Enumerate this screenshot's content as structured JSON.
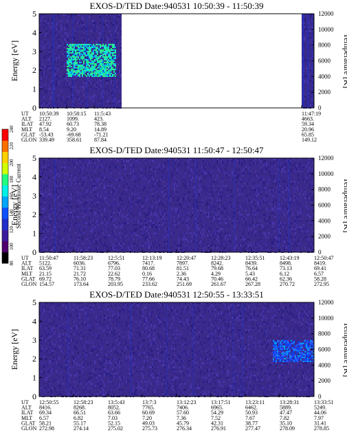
{
  "chart_data": [
    {
      "type": "heatmap",
      "title": "EXOS-D/TED  Date:940531  10:50:39 - 11:50:39",
      "ylabel": "Energy [eV]",
      "ylabel_right": "Temperature [K]",
      "ylim": [
        0,
        5
      ],
      "y_ticks": [
        "0",
        "1",
        "2",
        "3",
        "4",
        "5"
      ],
      "y2lim": [
        0,
        12000
      ],
      "y2_ticks": [
        "0",
        "2000",
        "4000",
        "6000",
        "8000",
        "10000",
        "12000"
      ],
      "row_labels": [
        "UT",
        "ALT",
        "ILAT",
        "MLT",
        "GLAT",
        "GLON"
      ],
      "x_ticks": [
        {
          "col": [
            "10:50:39",
            "2127.",
            "47.92",
            "8.54",
            "-53.43",
            "339.49"
          ]
        },
        {
          "col": [
            "10:58:15",
            "1099.",
            "60.73",
            "9.20",
            "-69.68",
            "358.61"
          ]
        },
        {
          "col": [
            "11:5:43",
            "423.",
            "78.38",
            "14.89",
            "-71.21",
            "87.84"
          ]
        },
        {
          "col": [
            "11:47:19",
            "4663.",
            "59.34",
            "20.96",
            "65.85",
            "149.12"
          ]
        }
      ],
      "data_coverage": [
        [
          0.0,
          0.3
        ],
        [
          0.955,
          1.0
        ]
      ],
      "hot_region": {
        "t_range": [
          0.1,
          0.28
        ],
        "e_range": [
          1.7,
          3.4
        ],
        "level": "high"
      },
      "background_level": "low"
    },
    {
      "type": "heatmap",
      "title": "EXOS-D/TED  Date:940531  11:50:47 - 12:50:47",
      "ylabel": "Energy [eV]",
      "ylabel_right": "Temperature [K]",
      "ylim": [
        0,
        5
      ],
      "y_ticks": [
        "0",
        "1",
        "2",
        "3",
        "4",
        "5"
      ],
      "y2lim": [
        0,
        12000
      ],
      "y2_ticks": [
        "0",
        "2000",
        "4000",
        "6000",
        "8000",
        "10000",
        "12000"
      ],
      "row_labels": [
        "UT",
        "ALT",
        "ILAT",
        "MLT",
        "GLAT",
        "GLON"
      ],
      "x_ticks": [
        {
          "col": [
            "11:50:47",
            "5122.",
            "63.59",
            "21.15",
            "69.72",
            "154.57"
          ]
        },
        {
          "col": [
            "11:58:23",
            "6036.",
            "71.31",
            "21.72",
            "76.10",
            "173.64"
          ]
        },
        {
          "col": [
            "12:5:51",
            "6796.",
            "77.03",
            "22.62",
            "78.79",
            "203.95"
          ]
        },
        {
          "col": [
            "12:13:19",
            "7417.",
            "80.68",
            "0.16",
            "77.66",
            "233.62"
          ]
        },
        {
          "col": [
            "12:20:47",
            "7897.",
            "81.51",
            "2.36",
            "74.43",
            "251.69"
          ]
        },
        {
          "col": [
            "12:28:23",
            "8242.",
            "79.68",
            "4.29",
            "70.46",
            "261.67"
          ]
        },
        {
          "col": [
            "12:35:51",
            "8439.",
            "76.64",
            "5.43",
            "66.42",
            "267.28"
          ]
        },
        {
          "col": [
            "12:43:19",
            "8498.",
            "73.13",
            "6.12",
            "62.36",
            "270.72"
          ]
        },
        {
          "col": [
            "12:50:47",
            "8419.",
            "69.41",
            "6.57",
            "58.28",
            "272.95"
          ]
        }
      ],
      "data_coverage": [
        [
          0.0,
          1.0
        ]
      ],
      "background_level": "low"
    },
    {
      "type": "heatmap",
      "title": "EXOS-D/TED  Date:940531  12:50:55 - 13:33:51",
      "ylabel": "Energy [eV]",
      "ylabel_right": "Temperature [K]",
      "ylim": [
        0,
        5
      ],
      "y_ticks": [
        "0",
        "1",
        "2",
        "3",
        "4",
        "5"
      ],
      "y2lim": [
        0,
        12000
      ],
      "y2_ticks": [
        "0",
        "2000",
        "4000",
        "6000",
        "8000",
        "10000",
        "12000"
      ],
      "row_labels": [
        "UT",
        "ALT",
        "ILAT",
        "MLT",
        "GLAT",
        "GLON"
      ],
      "x_ticks": [
        {
          "col": [
            "12:50:55",
            "8416.",
            "69.34",
            "6.57",
            "58.21",
            "272.98"
          ]
        },
        {
          "col": [
            "12:58:23",
            "8268.",
            "66.51",
            "6.82",
            "55.17",
            "274.14"
          ]
        },
        {
          "col": [
            "13:5:43",
            "8052.",
            "63.66",
            "7.03",
            "52.15",
            "275.02"
          ]
        },
        {
          "col": [
            "13:7:3",
            "7765.",
            "60.69",
            "7.20",
            "49.03",
            "275.73"
          ]
        },
        {
          "col": [
            "13:12:23",
            "7406.",
            "57.60",
            "7.36",
            "45.79",
            "276.34"
          ]
        },
        {
          "col": [
            "13:17:51",
            "6965.",
            "54.29",
            "7.52",
            "42.31",
            "276.91"
          ]
        },
        {
          "col": [
            "13:23:11",
            "6462.",
            "50.93",
            "7.67",
            "38.77",
            "277.47"
          ]
        },
        {
          "col": [
            "13:28:31",
            "5889.",
            "47.47",
            "7.82",
            "35.10",
            "278.09"
          ]
        },
        {
          "col": [
            "13:33:51",
            "5249.",
            "44.06",
            "7.97",
            "31.41",
            "278.85"
          ]
        }
      ],
      "data_coverage": [
        [
          0.0,
          1.0
        ]
      ],
      "hot_region": {
        "t_range": [
          0.85,
          1.0
        ],
        "e_range": [
          1.9,
          3.0
        ],
        "level": "medium"
      },
      "background_level": "low"
    }
  ],
  "colorbar": {
    "label": "Second Harmonic Current",
    "ticks": [
      "80",
      "100",
      "120",
      "140",
      "160",
      "180",
      "200",
      "220",
      "240"
    ],
    "colors": [
      "#000000",
      "#50006e",
      "#3a1c9e",
      "#1f2fc8",
      "#1050ff",
      "#00a6ff",
      "#00f0e8",
      "#20ff80",
      "#d0ff00",
      "#ffd000",
      "#ff7000",
      "#ff0000"
    ]
  },
  "colors": {
    "background": "#3b2a8a",
    "empty": "#ffffff"
  }
}
